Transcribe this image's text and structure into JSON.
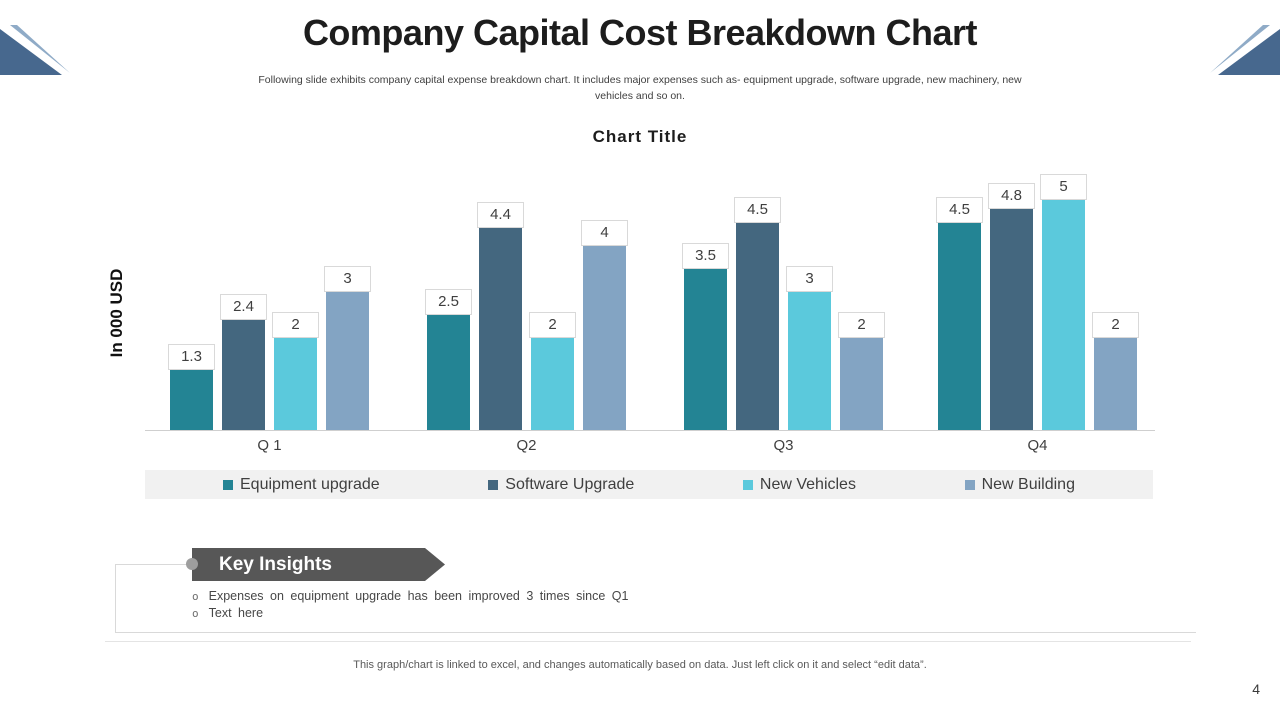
{
  "slide": {
    "title": "Company Capital Cost Breakdown Chart",
    "subtitle": "Following slide exhibits company capital expense breakdown chart. It includes major expenses such as- equipment upgrade, software upgrade, new machinery, new vehicles and so on.",
    "footer_note": "This graph/chart is linked to excel, and changes automatically based on data. Just left click on it and select “edit data”.",
    "page_number": "4",
    "accent_colors": {
      "ornament_dark": "#47688e",
      "ornament_light": "#8fabc7",
      "banner_grey": "#575757",
      "legend_background": "#f1f1f1"
    }
  },
  "chart_data": {
    "type": "bar",
    "title": "Chart Title",
    "xlabel": "",
    "ylabel": "In 000 USD",
    "categories": [
      "Q 1",
      "Q2",
      "Q3",
      "Q4"
    ],
    "series": [
      {
        "name": "Equipment upgrade",
        "color": "#238494",
        "values": [
          1.3,
          2.5,
          3.5,
          4.5
        ]
      },
      {
        "name": "Software Upgrade",
        "color": "#44677f",
        "values": [
          2.4,
          4.4,
          4.5,
          4.8
        ]
      },
      {
        "name": "New Vehicles",
        "color": "#5bc9dc",
        "values": [
          2,
          2,
          3,
          5
        ]
      },
      {
        "name": "New Building",
        "color": "#83a4c3",
        "values": [
          3,
          4,
          2,
          2
        ]
      }
    ],
    "ylim": [
      0,
      5
    ],
    "grid": false,
    "axis_ticks_visible": false,
    "data_labels": true,
    "legend_position": "bottom"
  },
  "insights": {
    "heading": "Key Insights",
    "bullet_marker": "o",
    "bullets": [
      "Expenses on equipment upgrade has been improved 3 times since Q1",
      "Text here"
    ]
  }
}
